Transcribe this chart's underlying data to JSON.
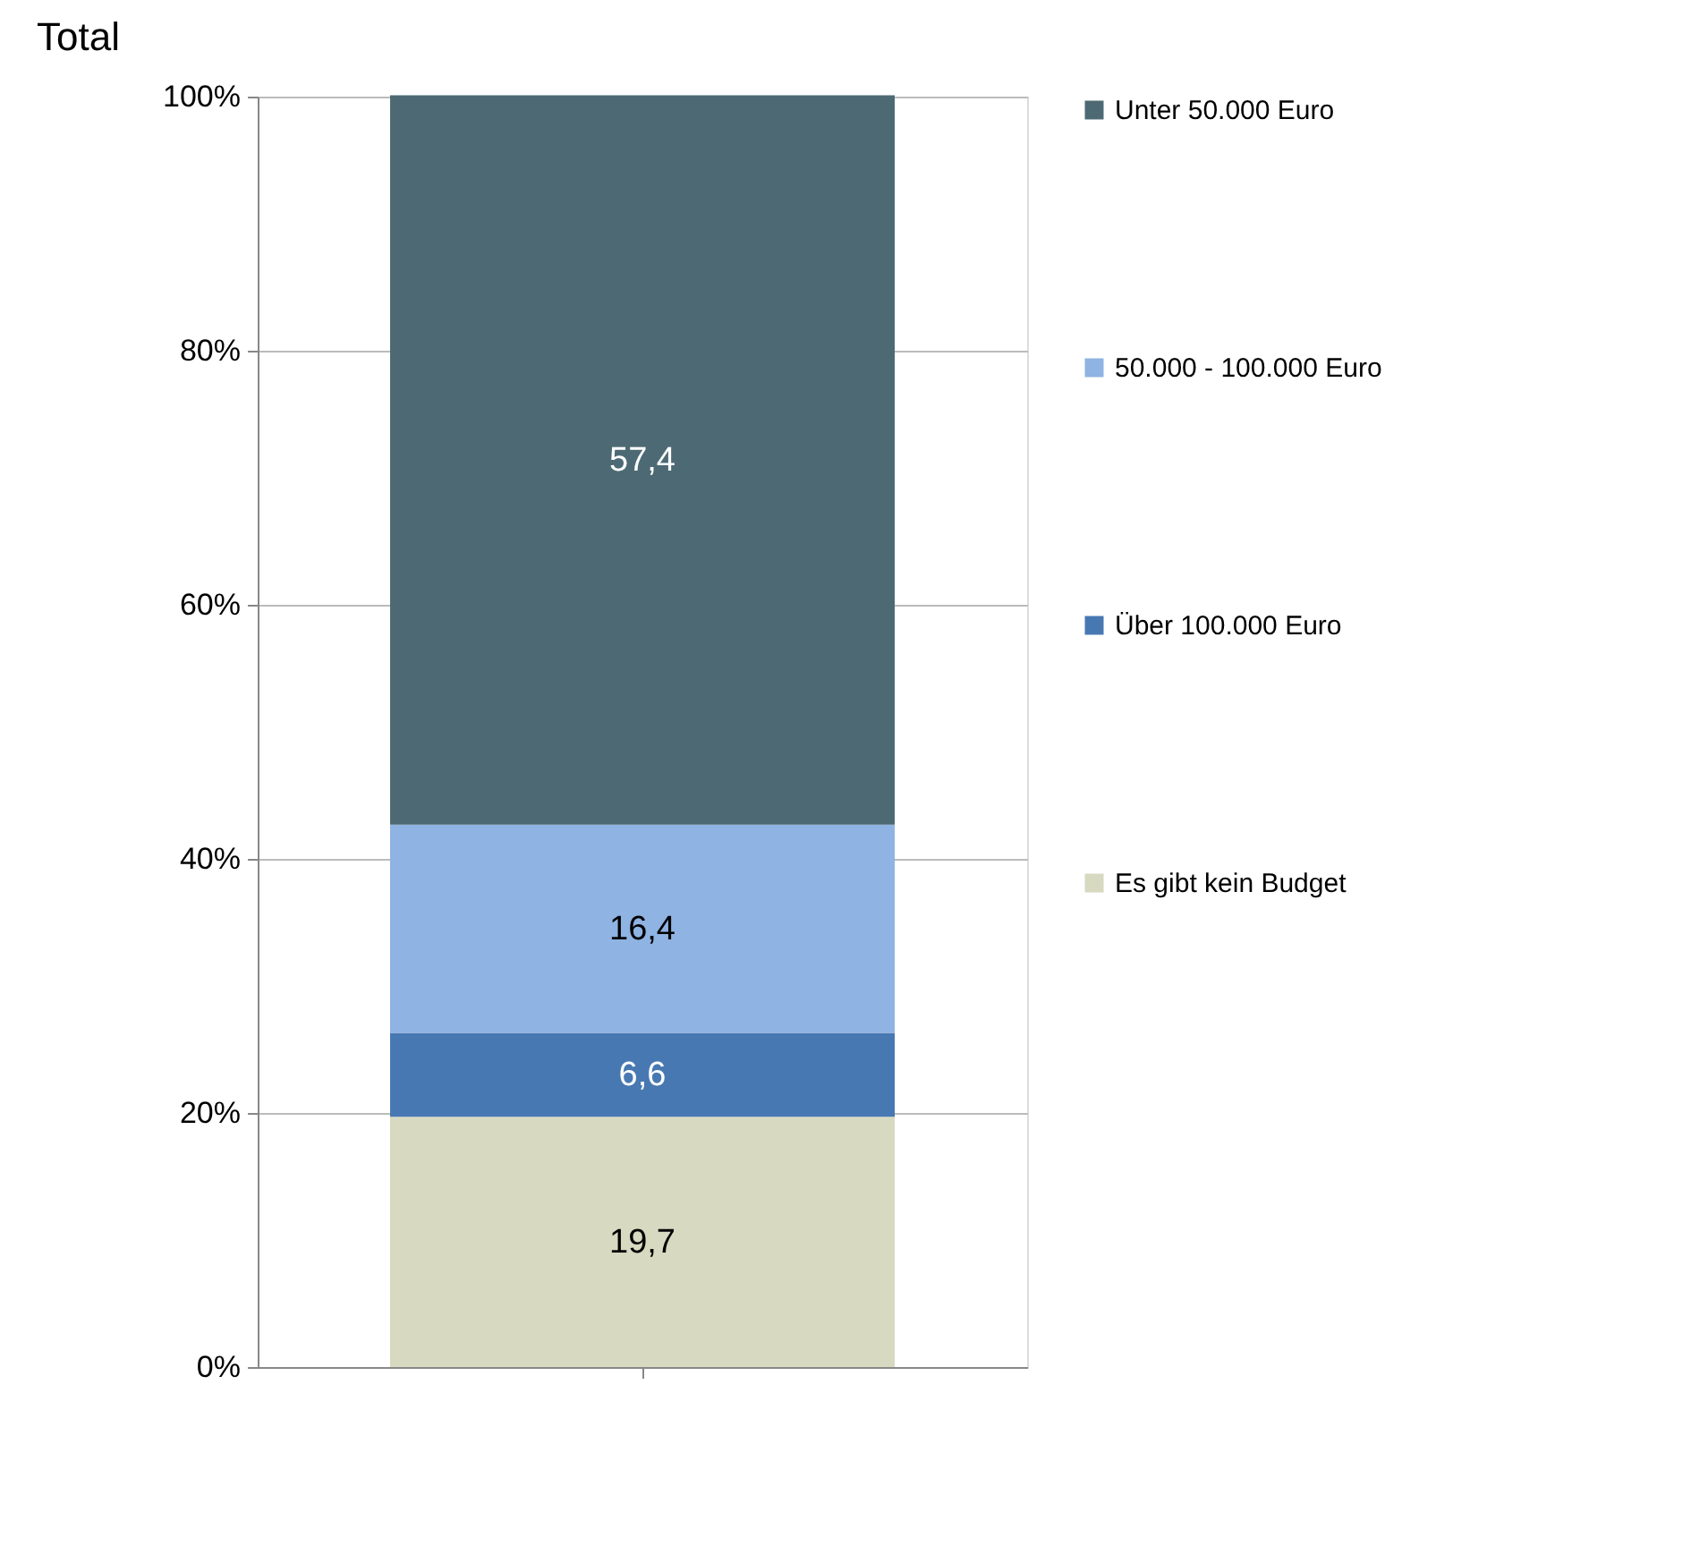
{
  "chart_data": {
    "type": "bar",
    "title": "Total",
    "stacked": true,
    "categories": [
      null
    ],
    "series": [
      {
        "name": "Es gibt kein Budget",
        "color": "#d7d9c0",
        "values": [
          19.7
        ],
        "value_labels": [
          "19,7"
        ]
      },
      {
        "name": "Über 100.000 Euro",
        "color": "#4878b2",
        "values": [
          6.6
        ],
        "value_labels": [
          "6,6"
        ]
      },
      {
        "name": "50.000  - 100.000 Euro",
        "color": "#8fb3e2",
        "values": [
          16.4
        ],
        "value_labels": [
          "16,4"
        ]
      },
      {
        "name": "Unter 50.000 Euro",
        "color": "#4d6a74",
        "values": [
          57.4
        ],
        "value_labels": [
          "57,4"
        ]
      }
    ],
    "ylim": [
      0,
      100
    ],
    "yticks": [
      {
        "value": 0,
        "label": "0%"
      },
      {
        "value": 20,
        "label": "20%"
      },
      {
        "value": 40,
        "label": "40%"
      },
      {
        "value": 60,
        "label": "60%"
      },
      {
        "value": 80,
        "label": "80%"
      },
      {
        "value": 100,
        "label": "100%"
      }
    ],
    "grid": "y",
    "legend": "right",
    "tick_labels": "y"
  }
}
